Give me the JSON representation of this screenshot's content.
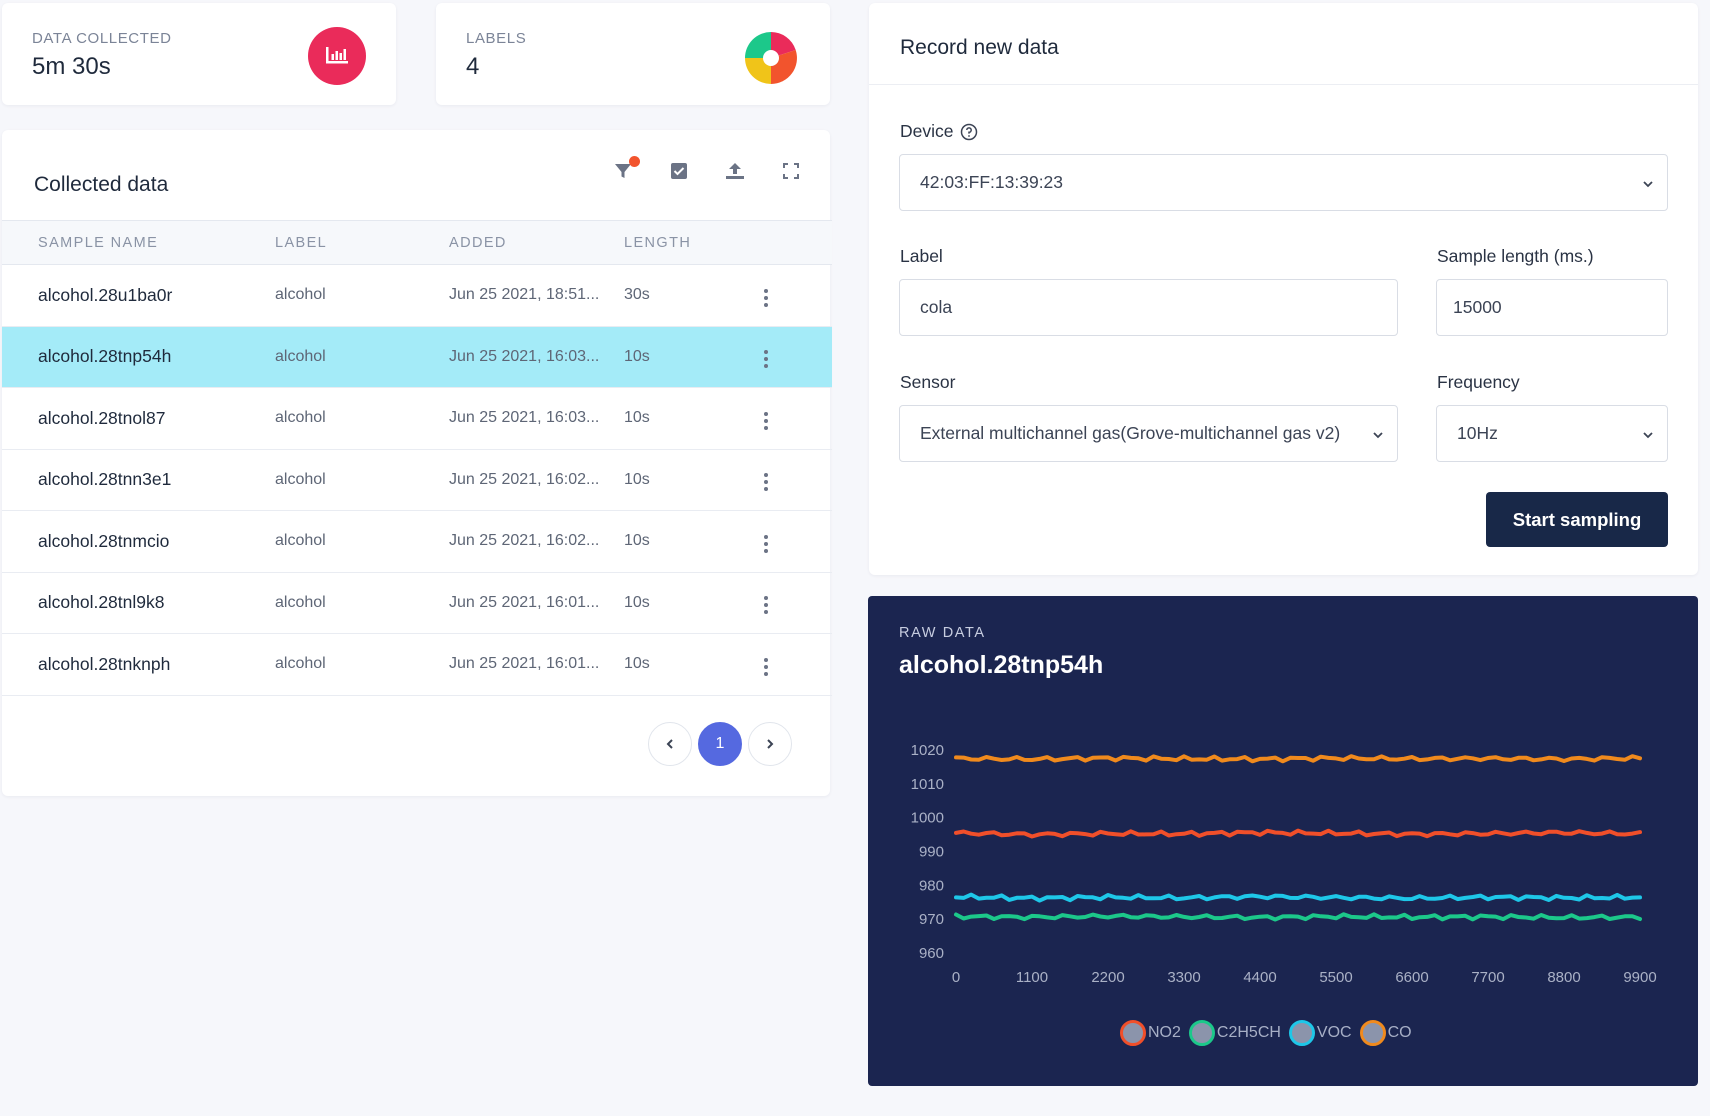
{
  "stats": {
    "data_collected": {
      "label": "DATA COLLECTED",
      "value": "5m 30s"
    },
    "labels": {
      "label": "LABELS",
      "value": "4"
    }
  },
  "collected": {
    "title": "Collected data",
    "columns": [
      "SAMPLE NAME",
      "LABEL",
      "ADDED",
      "LENGTH"
    ],
    "rows": [
      {
        "name": "alcohol.28u1ba0r",
        "label": "alcohol",
        "added": "Jun 25 2021, 18:51...",
        "length": "30s"
      },
      {
        "name": "alcohol.28tnp54h",
        "label": "alcohol",
        "added": "Jun 25 2021, 16:03...",
        "length": "10s",
        "selected": true
      },
      {
        "name": "alcohol.28tnol87",
        "label": "alcohol",
        "added": "Jun 25 2021, 16:03...",
        "length": "10s"
      },
      {
        "name": "alcohol.28tnn3e1",
        "label": "alcohol",
        "added": "Jun 25 2021, 16:02...",
        "length": "10s"
      },
      {
        "name": "alcohol.28tnmcio",
        "label": "alcohol",
        "added": "Jun 25 2021, 16:02...",
        "length": "10s"
      },
      {
        "name": "alcohol.28tnl9k8",
        "label": "alcohol",
        "added": "Jun 25 2021, 16:01...",
        "length": "10s"
      },
      {
        "name": "alcohol.28tnknph",
        "label": "alcohol",
        "added": "Jun 25 2021, 16:01...",
        "length": "10s"
      }
    ],
    "pager": {
      "current": "1"
    },
    "toolbar_icons": [
      "filter-icon",
      "select-icon",
      "upload-icon",
      "expand-icon"
    ]
  },
  "record": {
    "title": "Record new data",
    "device_label": "Device",
    "device_value": "42:03:FF:13:39:23",
    "label_label": "Label",
    "label_value": "cola",
    "sample_length_label": "Sample length (ms.)",
    "sample_length_value": "15000",
    "sensor_label": "Sensor",
    "sensor_value": "External multichannel gas(Grove-multichannel gas v2)",
    "frequency_label": "Frequency",
    "frequency_value": "10Hz",
    "start_button": "Start sampling"
  },
  "raw": {
    "kicker": "RAW DATA",
    "title": "alcohol.28tnp54h"
  },
  "colors": {
    "accent": "#5569e0",
    "selected_row": "#a4ebf8",
    "primary_button": "#182848",
    "raw_bg": "#1b2550",
    "stat_icon": "#ea2b5a"
  },
  "chart_data": {
    "type": "line",
    "x": [
      0,
      1100,
      2200,
      3300,
      4400,
      5500,
      6600,
      7700,
      8800,
      9900
    ],
    "x_ticks": [
      "0",
      "1100",
      "2200",
      "3300",
      "4400",
      "5500",
      "6600",
      "7700",
      "8800",
      "9900"
    ],
    "y_ticks": [
      "1020",
      "1010",
      "1000",
      "990",
      "980",
      "970",
      "960"
    ],
    "xlim": [
      0,
      9900
    ],
    "ylim": [
      960,
      1020
    ],
    "grid": false,
    "legend_position": "bottom",
    "series": [
      {
        "name": "NO2",
        "color": "#f04f2a",
        "values": [
          995.5,
          995.0,
          995.3,
          995.2,
          995.6,
          995.4,
          995.1,
          995.3,
          995.6,
          995.2
        ]
      },
      {
        "name": "C2H5CH",
        "color": "#1cc88a",
        "values": [
          970.8,
          970.6,
          970.9,
          970.7,
          970.5,
          970.8,
          970.6,
          970.7,
          970.5,
          970.6
        ]
      },
      {
        "name": "VOC",
        "color": "#1ec7e8",
        "values": [
          976.6,
          976.2,
          976.5,
          976.3,
          976.7,
          976.4,
          976.2,
          976.5,
          976.3,
          976.5
        ]
      },
      {
        "name": "CO",
        "color": "#f08a1d",
        "values": [
          1017.5,
          1017.3,
          1017.6,
          1017.4,
          1017.3,
          1017.6,
          1017.4,
          1017.5,
          1017.3,
          1017.6
        ]
      }
    ]
  }
}
